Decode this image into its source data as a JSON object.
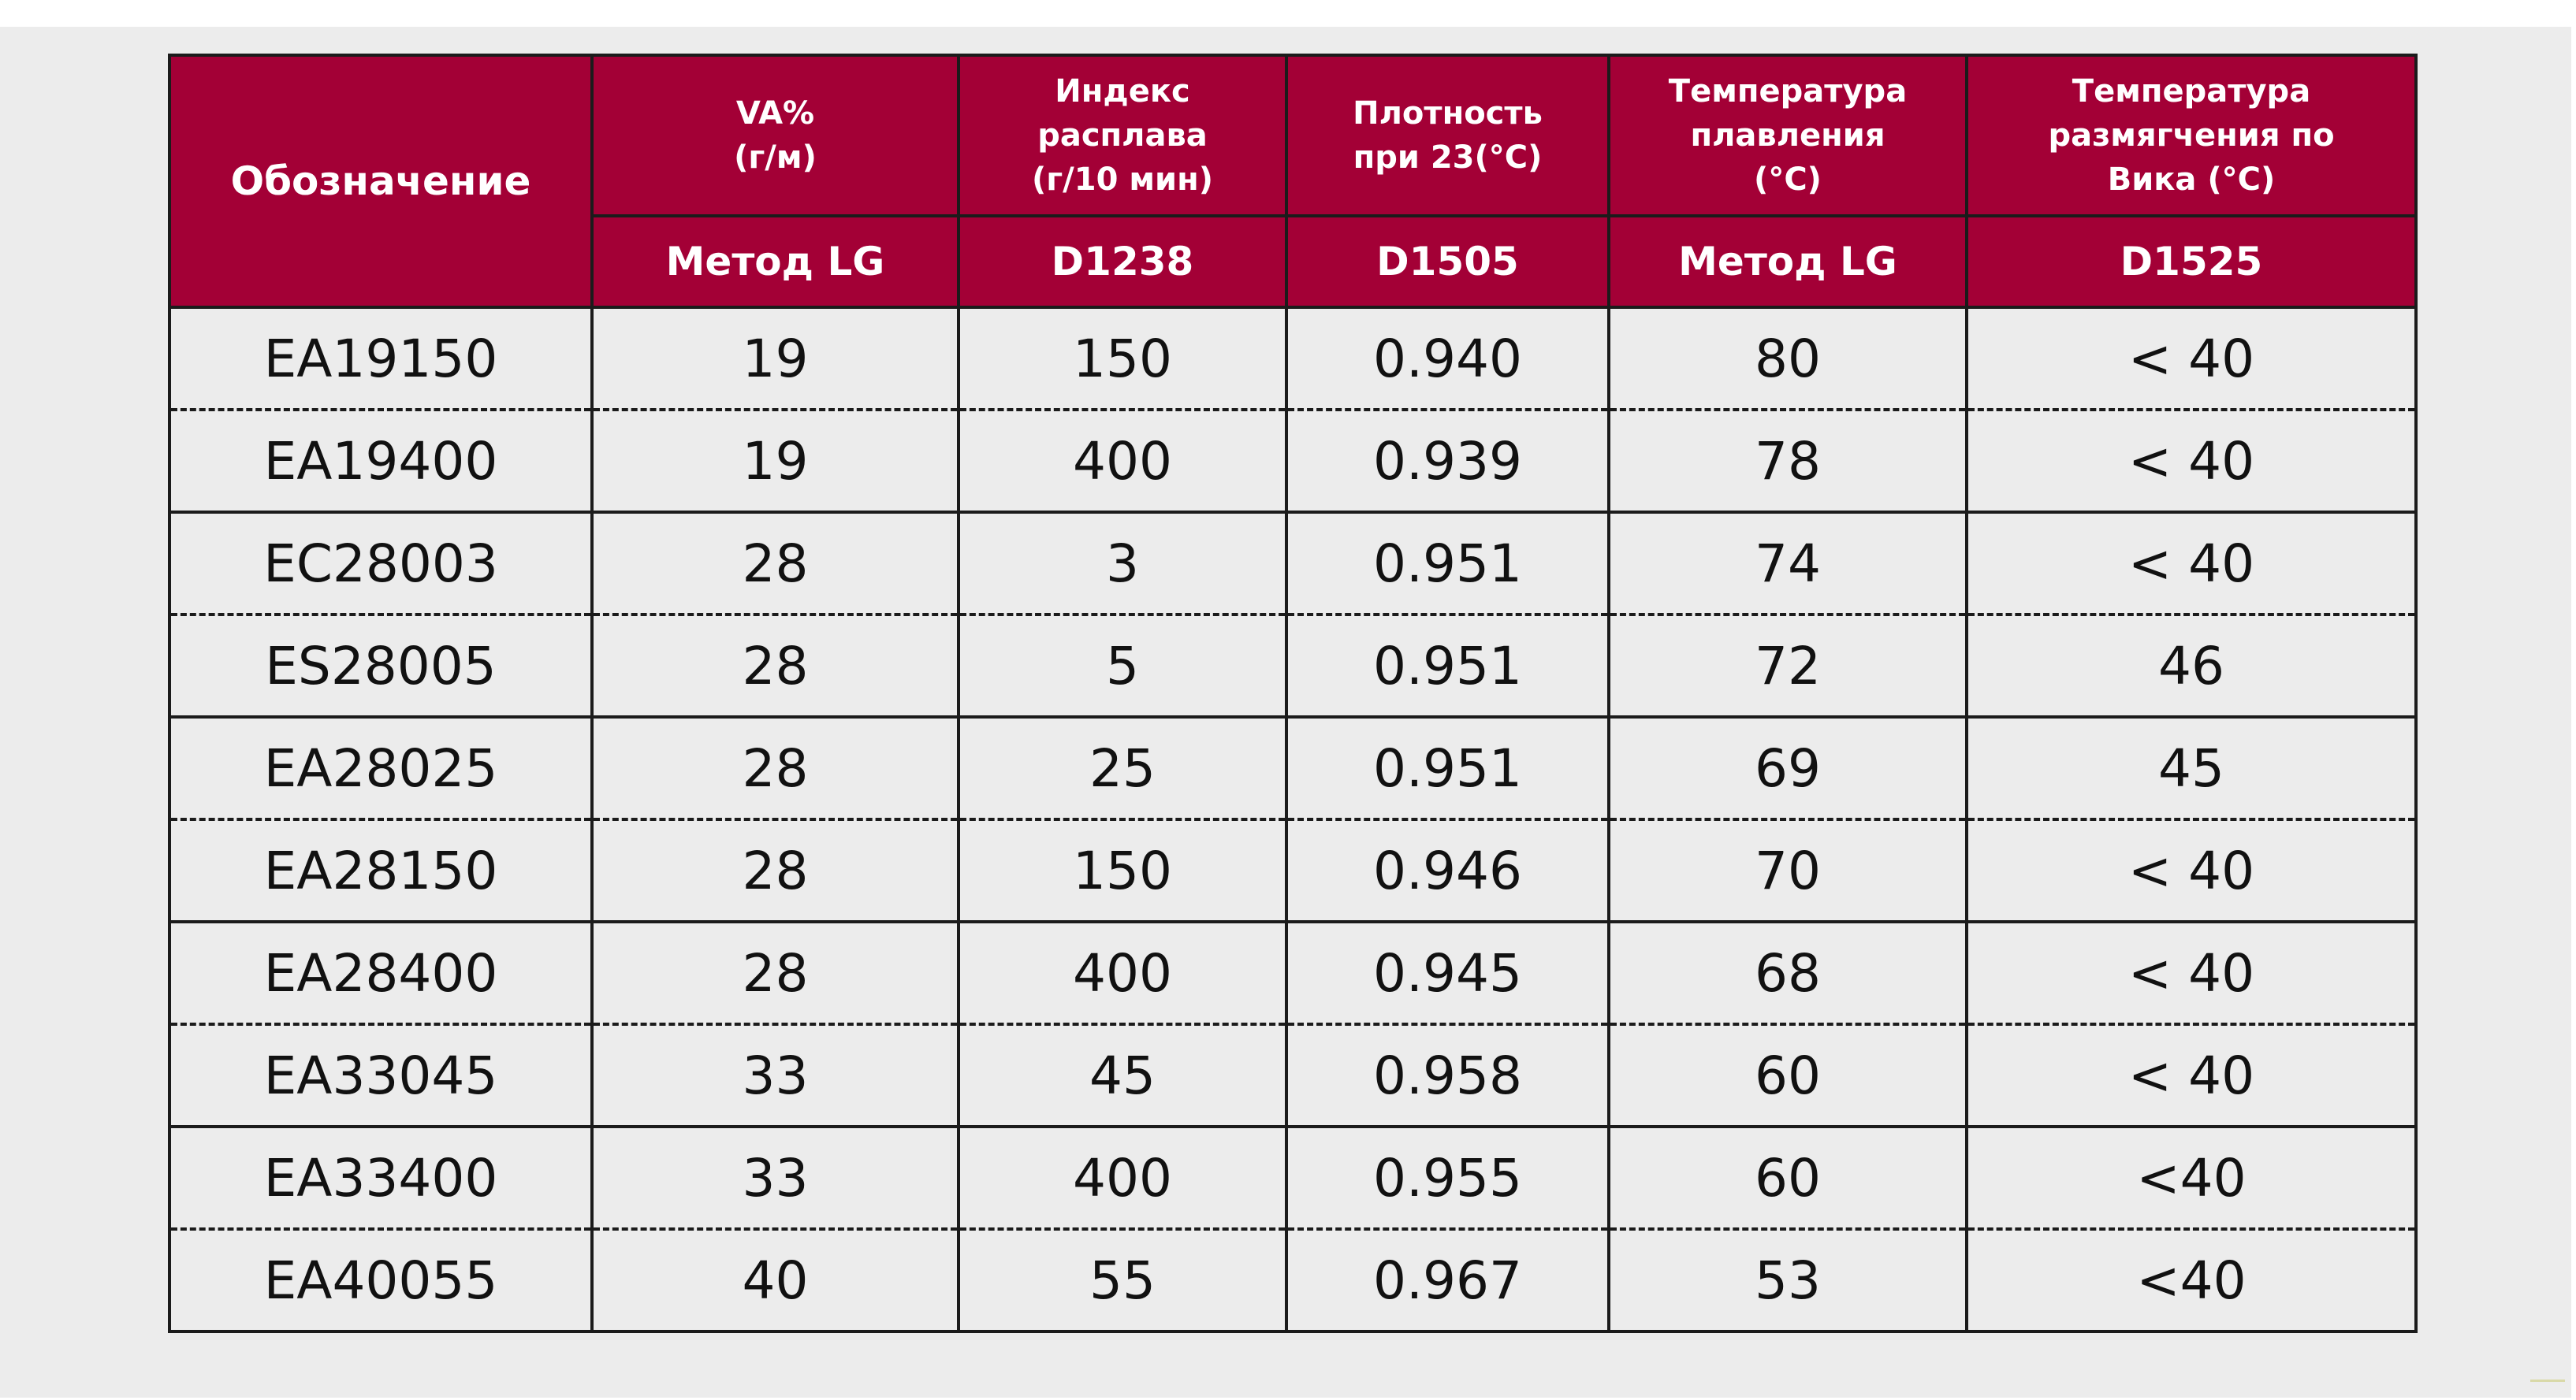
{
  "table": {
    "headers": [
      {
        "title": "Обозначение",
        "method": ""
      },
      {
        "title": "VA% (г/м)",
        "method": "Метод LG"
      },
      {
        "title": "Индекс расплава (г/10 мин)",
        "method": "D1238"
      },
      {
        "title": "Плотность при 23(°C)",
        "method": "D1505"
      },
      {
        "title": "Температура плавления (°C)",
        "method": "Метод LG"
      },
      {
        "title": "Температура размягчения по Вика (°C)",
        "method": "D1525"
      }
    ],
    "header_lines": {
      "h1_line1": "VA%",
      "h1_line2": "(г/м)",
      "h2_line1": "Индекс",
      "h2_line2": "расплава",
      "h2_line3": "(г/10 мин)",
      "h3_line1": "Плотность",
      "h3_line2": "при 23(°C)",
      "h4_line1": "Температура",
      "h4_line2": "плавления",
      "h4_line3": "(°C)",
      "h5_line1": "Температура",
      "h5_line2": "размягчения по",
      "h5_line3": "Вика (°C)"
    },
    "rows": [
      [
        "EA19150",
        "19",
        "150",
        "0.940",
        "80",
        "< 40"
      ],
      [
        "EA19400",
        "19",
        "400",
        "0.939",
        "78",
        "< 40"
      ],
      [
        "EC28003",
        "28",
        "3",
        "0.951",
        "74",
        "< 40"
      ],
      [
        "ES28005",
        "28",
        "5",
        "0.951",
        "72",
        "46"
      ],
      [
        "EA28025",
        "28",
        "25",
        "0.951",
        "69",
        "45"
      ],
      [
        "EA28150",
        "28",
        "150",
        "0.946",
        "70",
        "< 40"
      ],
      [
        "EA28400",
        "28",
        "400",
        "0.945",
        "68",
        "< 40"
      ],
      [
        "EA33045",
        "33",
        "45",
        "0.958",
        "60",
        "< 40"
      ],
      [
        "EA33400",
        "33",
        "400",
        "0.955",
        "60",
        "<40"
      ],
      [
        "EA40055",
        "40",
        "55",
        "0.967",
        "53",
        "<40"
      ]
    ]
  },
  "colors": {
    "header_bg": "#a30036",
    "header_text": "#ffffff",
    "background": "#ececec"
  }
}
